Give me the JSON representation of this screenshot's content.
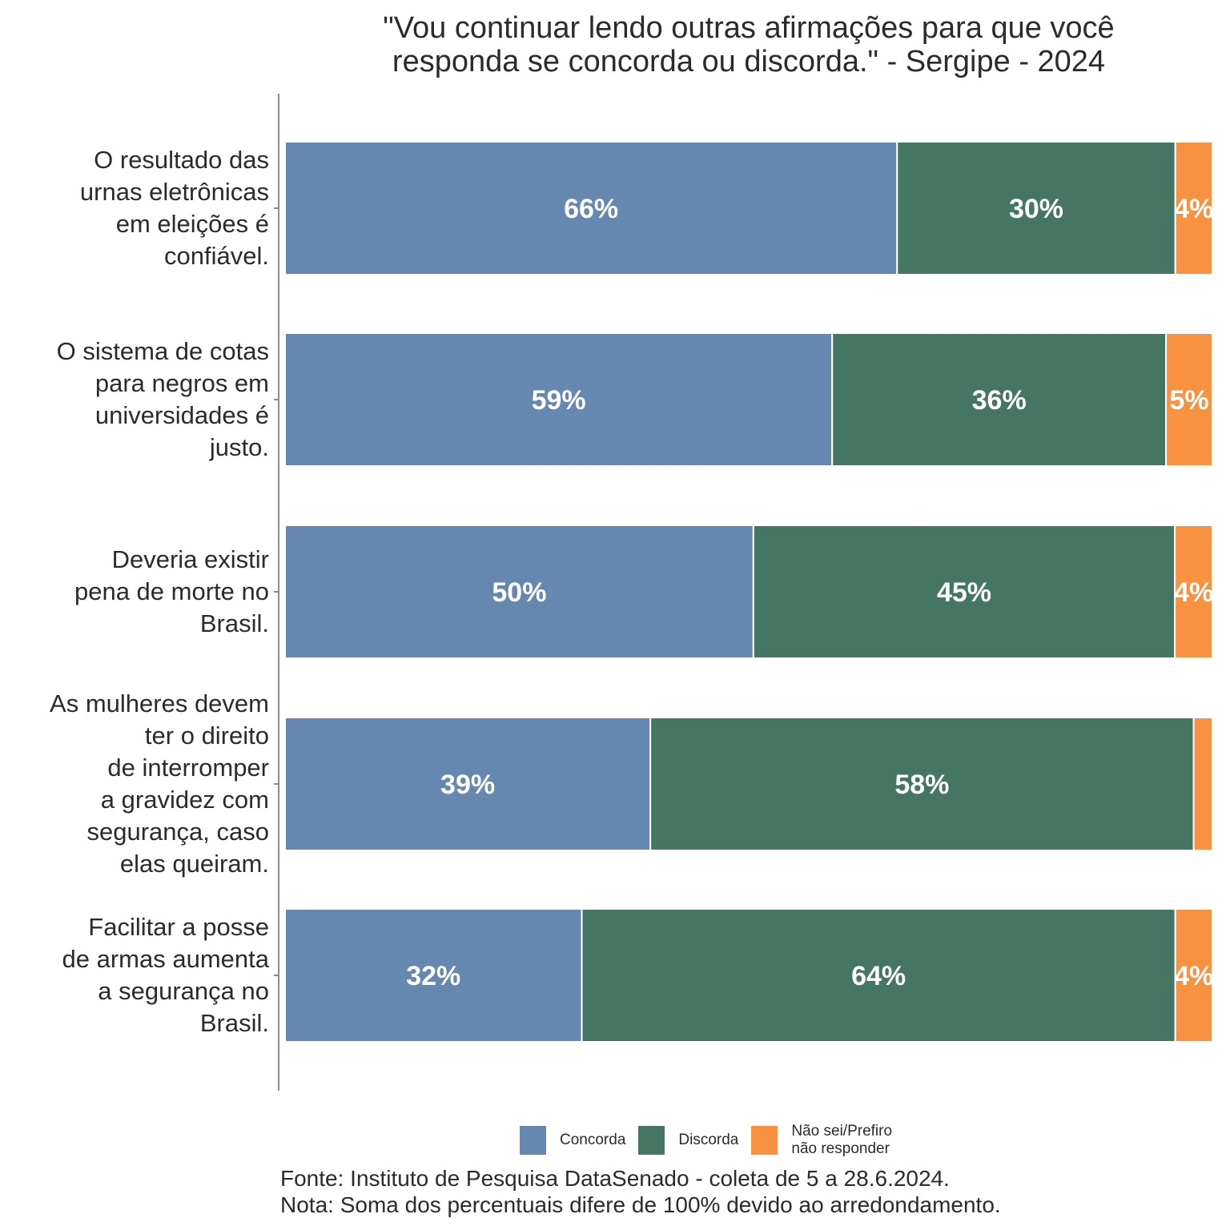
{
  "chart_data": {
    "type": "bar",
    "orientation": "horizontal",
    "stacked": true,
    "title": "\"Vou continuar lendo outras afirmações para que você responda se concorda ou discorda.\" - Sergipe - 2024",
    "title_lines": [
      "\"Vou continuar lendo outras afirmações para que você",
      "responda se concorda ou discorda.\" - Sergipe - 2024"
    ],
    "xlabel": "",
    "ylabel": "",
    "xlim": [
      0,
      100
    ],
    "grid": false,
    "legend_position": "bottom",
    "categories": [
      "O resultado das urnas eletrônicas em eleições é confiável.",
      "O sistema de cotas para negros em universidades é justo.",
      "Deveria existir pena de morte no Brasil.",
      "As mulheres devem ter o direito de interromper a gravidez com segurança, caso elas queiram.",
      "Facilitar a posse de armas aumenta a segurança no Brasil."
    ],
    "category_lines": [
      [
        "O resultado das",
        "urnas eletrônicas",
        "em eleições é",
        "confiável."
      ],
      [
        "O sistema de cotas",
        "para negros em",
        "universidades é",
        "justo."
      ],
      [
        "Deveria existir",
        "pena de morte no",
        "Brasil."
      ],
      [
        "As mulheres devem",
        "ter o direito",
        "de interromper",
        "a gravidez com",
        "segurança, caso",
        "elas queiram."
      ],
      [
        "Facilitar a posse",
        "de armas aumenta",
        "a segurança no",
        "Brasil."
      ]
    ],
    "series": [
      {
        "name": "Concorda",
        "color": "#6688B0",
        "values": [
          66,
          59,
          50,
          39,
          32
        ],
        "labels": [
          "66%",
          "59%",
          "50%",
          "39%",
          "32%"
        ]
      },
      {
        "name": "Discorda",
        "color": "#457563",
        "values": [
          30,
          36,
          45,
          58,
          64
        ],
        "labels": [
          "30%",
          "36%",
          "45%",
          "58%",
          "64%"
        ]
      },
      {
        "name": "Não sei/Prefiro não responder",
        "color": "#F99240",
        "values": [
          4,
          5,
          4,
          2,
          4
        ],
        "labels": [
          "4%",
          "5%",
          "4%",
          "",
          "4%"
        ]
      }
    ],
    "legend": {
      "entries": [
        "Concorda",
        "Discorda",
        "Não sei/Prefiro não responder"
      ],
      "entry_lines": [
        [
          "Concorda"
        ],
        [
          "Discorda"
        ],
        [
          "Não sei/Prefiro",
          "não responder"
        ]
      ]
    }
  },
  "footer": {
    "source": "Fonte: Instituto de Pesquisa DataSenado - coleta de 5 a 28.6.2024.",
    "note": "Nota: Soma dos percentuais difere de 100% devido ao arredondamento."
  }
}
